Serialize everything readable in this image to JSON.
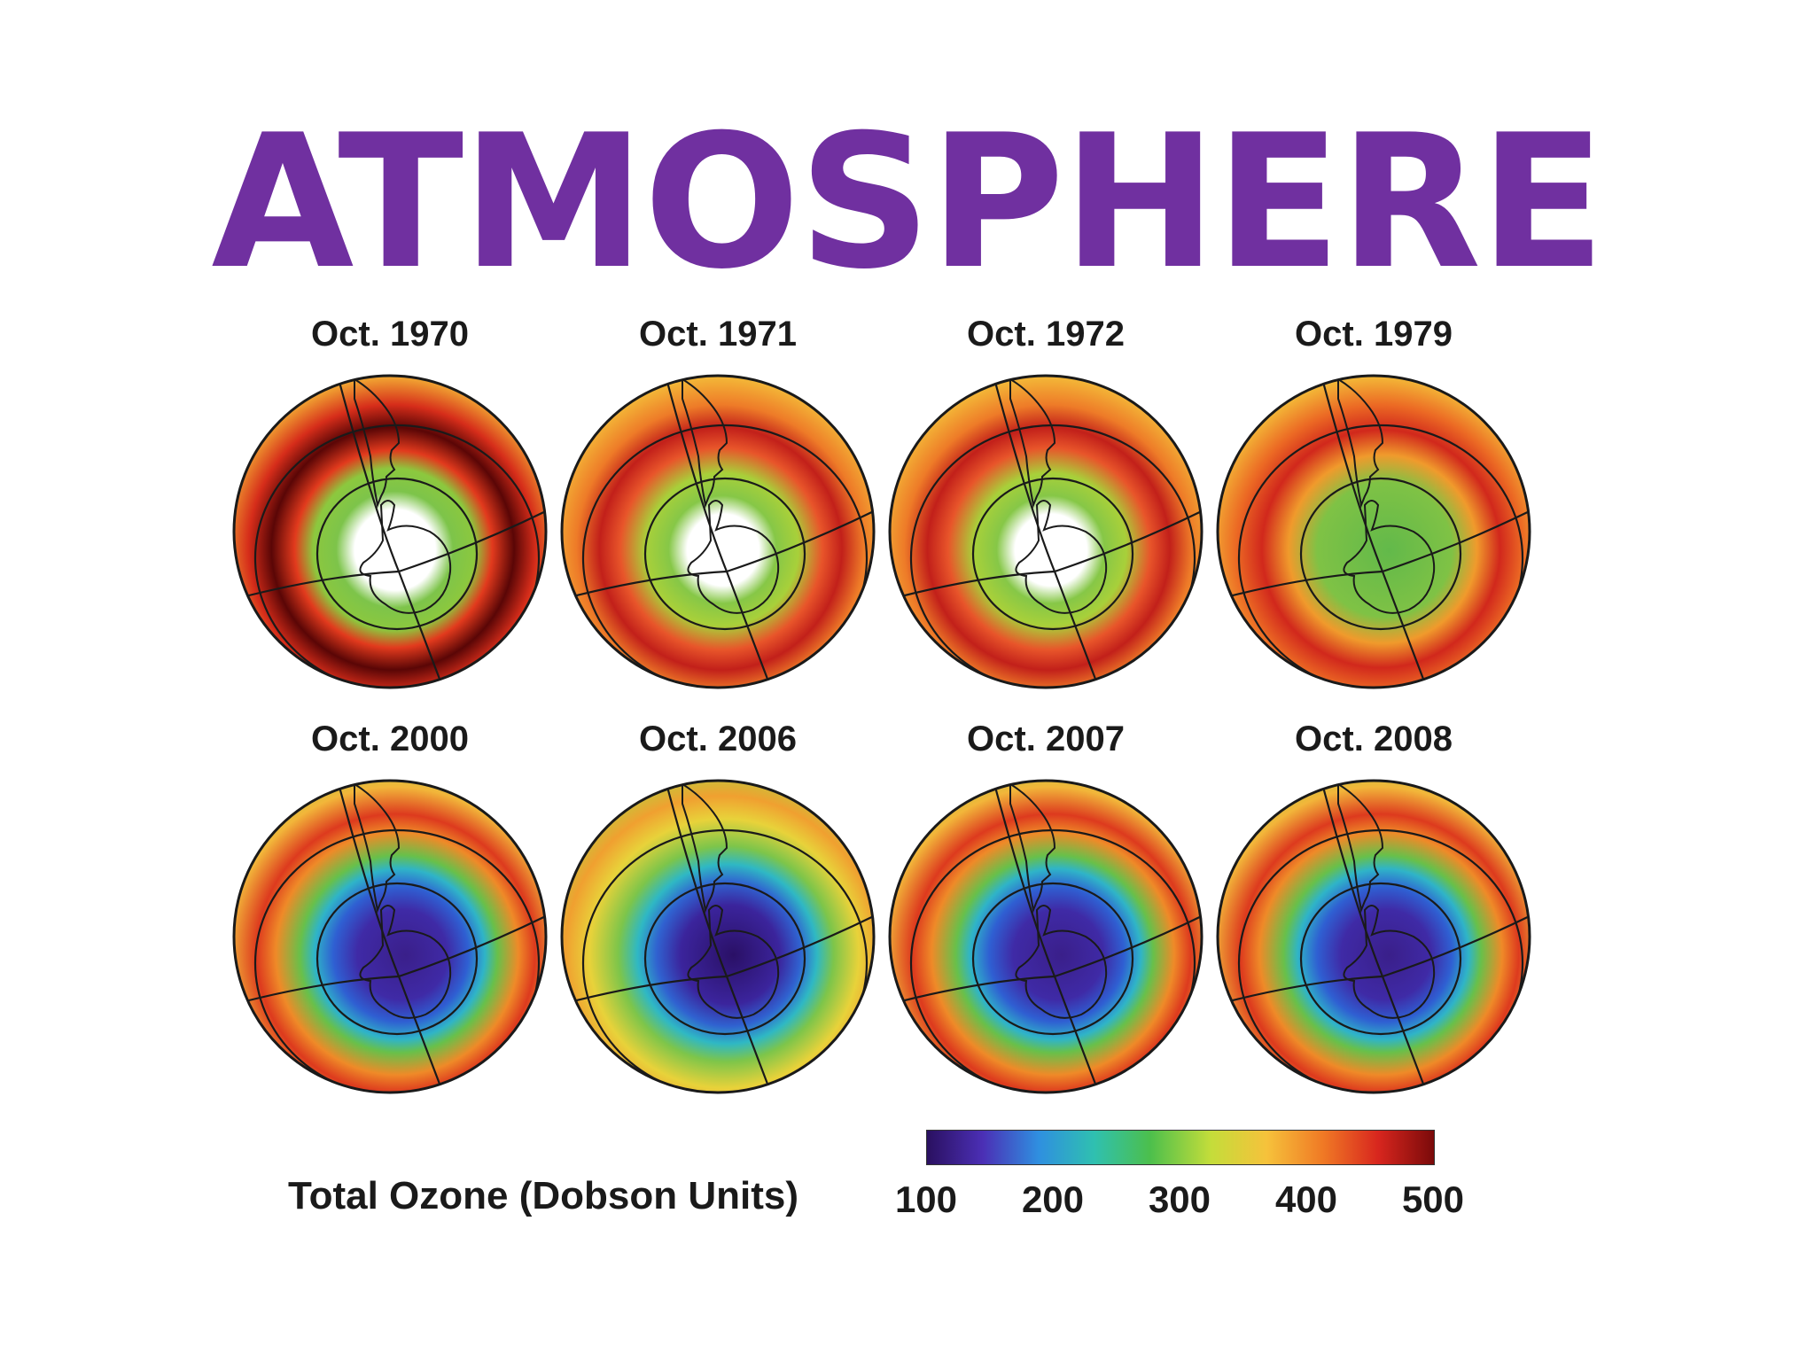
{
  "slide": {
    "title": "ATMOSPHERE"
  },
  "figure": {
    "panels": [
      {
        "label": "Oct. 1970",
        "pattern": "white-polar-dark-red-ring"
      },
      {
        "label": "Oct. 1971",
        "pattern": "white-polar-red-ring"
      },
      {
        "label": "Oct. 1972",
        "pattern": "white-polar-red-ring"
      },
      {
        "label": "Oct. 1979",
        "pattern": "green-polar-red-ring"
      },
      {
        "label": "Oct. 2000",
        "pattern": "purple-hole"
      },
      {
        "label": "Oct. 2006",
        "pattern": "deep-purple-hole"
      },
      {
        "label": "Oct. 2007",
        "pattern": "purple-hole"
      },
      {
        "label": "Oct. 2008",
        "pattern": "purple-hole"
      }
    ],
    "legend": {
      "label": "Total Ozone (Dobson Units)",
      "ticks": [
        "100",
        "200",
        "300",
        "400",
        "500"
      ],
      "colors": [
        "#2a1060",
        "#4b2fb5",
        "#2f8fe0",
        "#2fc0b0",
        "#4cbf4c",
        "#c4dd3a",
        "#f6c23b",
        "#f07a25",
        "#d8261e",
        "#7a0a0a"
      ]
    }
  }
}
